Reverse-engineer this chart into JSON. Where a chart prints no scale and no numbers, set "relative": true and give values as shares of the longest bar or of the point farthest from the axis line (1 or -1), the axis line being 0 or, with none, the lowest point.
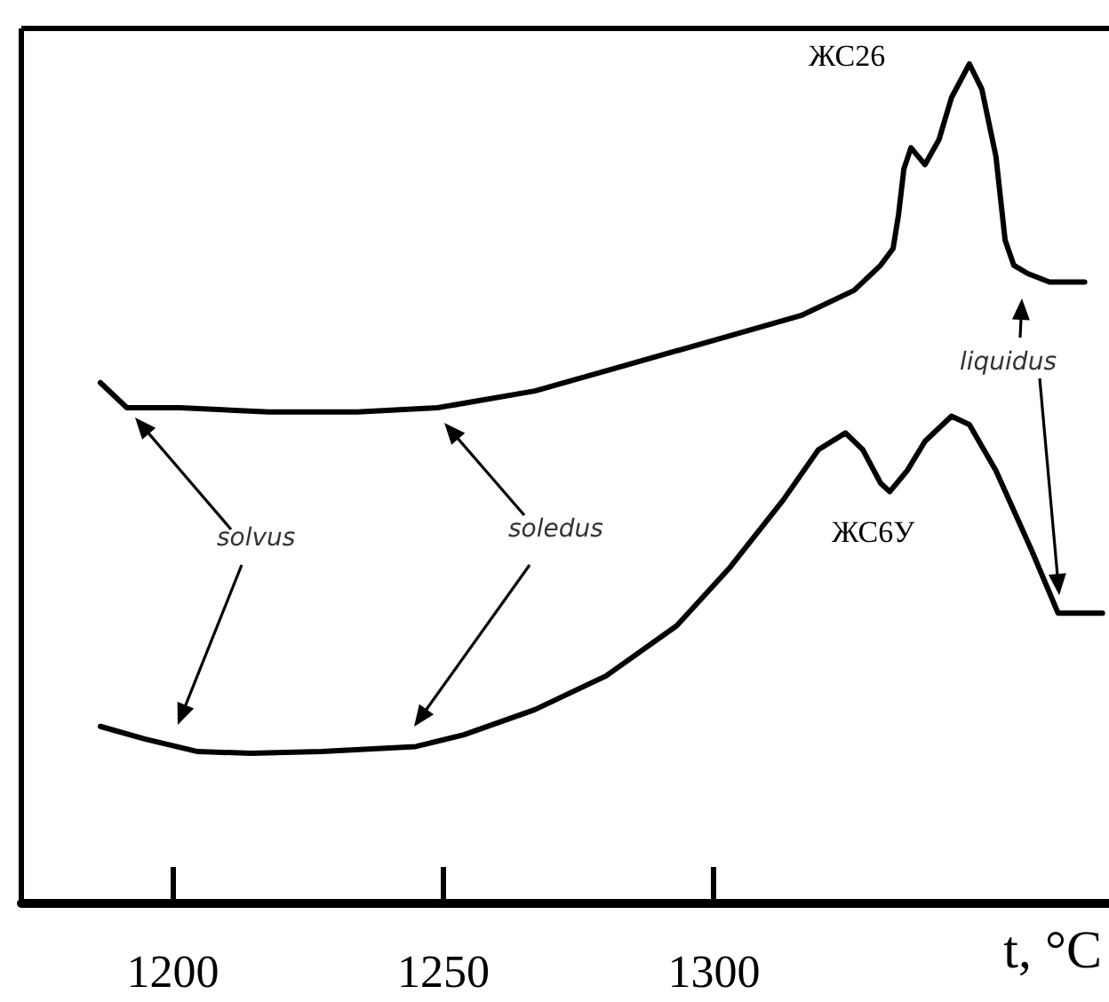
{
  "chart_data": {
    "type": "line",
    "relative": true,
    "xlabel": "t, °C",
    "xlim": [
      1172,
      1373
    ],
    "xticks": [
      1200,
      1250,
      1300
    ],
    "tick_labels": "x",
    "grid": false,
    "legend": false,
    "marker": "none",
    "line_style": "solid",
    "annotations": [
      "solvus",
      "soledus",
      "liquidus"
    ],
    "series": [
      {
        "name": "ЖС26",
        "color": "#000000",
        "x": [
          1186.6,
          1191.5,
          1201.3,
          1217.7,
          1234.1,
          1248.9,
          1266.9,
          1283.3,
          1299.7,
          1316.1,
          1325.9,
          1330.8,
          1333.1,
          1334.1,
          1335.1,
          1336.4,
          1337.7,
          1339.0,
          1341.6,
          1343.9,
          1347.2,
          1349.5,
          1352.1,
          1353.8,
          1355.4,
          1358.0,
          1362.0,
          1368.5
        ],
        "values": [
          0.62,
          0.59,
          0.59,
          0.585,
          0.585,
          0.59,
          0.61,
          0.64,
          0.67,
          0.7,
          0.73,
          0.76,
          0.78,
          0.82,
          0.875,
          0.9,
          0.89,
          0.88,
          0.91,
          0.96,
          1.0,
          0.97,
          0.89,
          0.79,
          0.76,
          0.75,
          0.74,
          0.74
        ]
      },
      {
        "name": "ЖС6У",
        "color": "#000000",
        "x": [
          1186.6,
          1194.8,
          1204.6,
          1214.4,
          1227.5,
          1244.9,
          1253.8,
          1266.9,
          1280,
          1293.1,
          1303,
          1312.8,
          1319.3,
          1324.3,
          1327.5,
          1330.8,
          1332.5,
          1335.7,
          1339,
          1343.9,
          1347.2,
          1352.1,
          1358.7,
          1363.6,
          1368.5,
          1371.8
        ],
        "values": [
          0.21,
          0.195,
          0.18,
          0.178,
          0.18,
          0.186,
          0.2,
          0.23,
          0.27,
          0.33,
          0.4,
          0.48,
          0.54,
          0.56,
          0.54,
          0.5,
          0.49,
          0.515,
          0.55,
          0.58,
          0.57,
          0.515,
          0.42,
          0.345,
          0.345,
          0.345
        ]
      }
    ]
  }
}
